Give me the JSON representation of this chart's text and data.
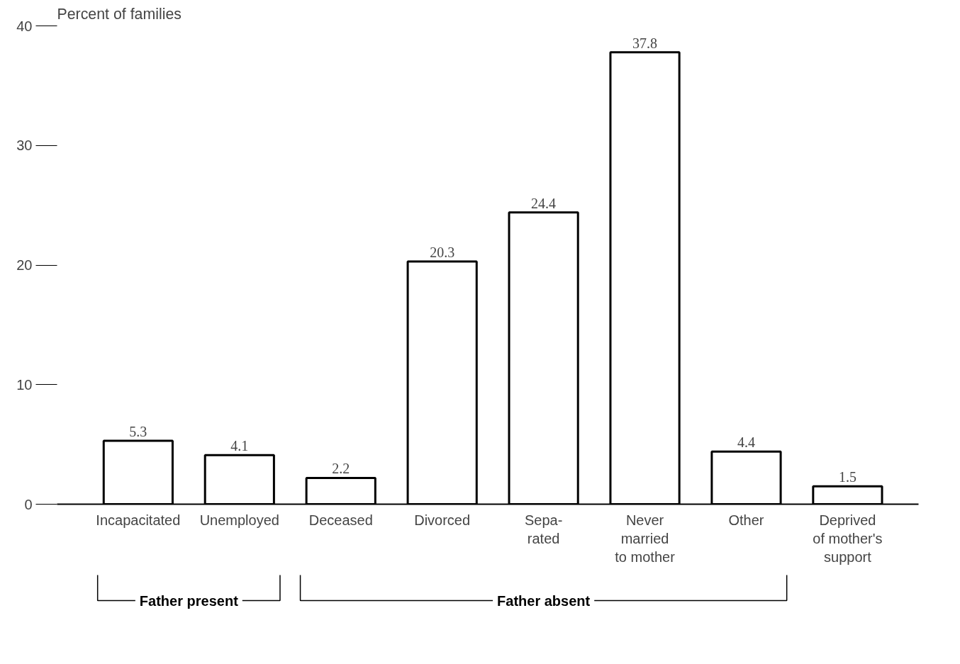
{
  "chart_data": {
    "type": "bar",
    "ylabel": "Percent of families",
    "categories": [
      "Incapacitated",
      "Unemployed",
      "Deceased",
      "Divorced",
      "Sepa-\nrated",
      "Never\nmarried\nto mother",
      "Other",
      "Deprived\nof mother's\nsupport"
    ],
    "values": [
      5.3,
      4.1,
      2.2,
      20.3,
      24.4,
      37.8,
      4.4,
      1.5
    ],
    "color": "#ffffff",
    "ylim": [
      0,
      40
    ],
    "yticks": [
      0,
      10,
      20,
      30,
      40
    ],
    "grid": false,
    "data_labels": true,
    "annotations": [
      "Father present",
      "Father absent"
    ]
  }
}
